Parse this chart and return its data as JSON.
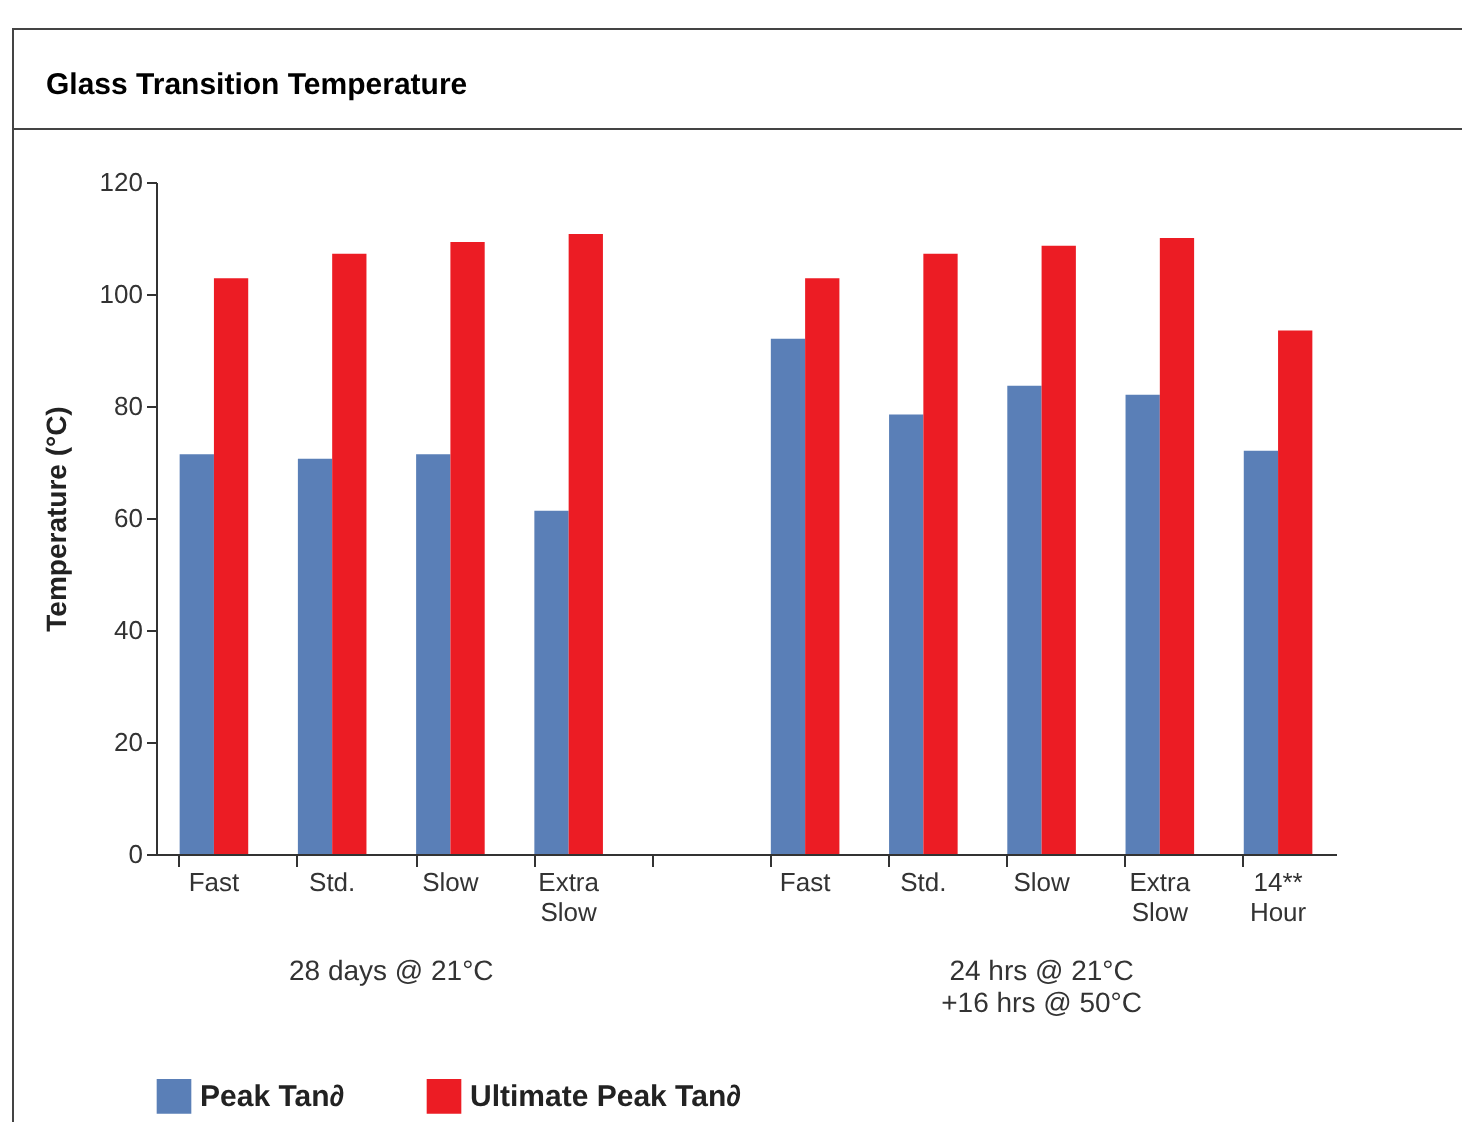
{
  "chart_data": {
    "type": "bar",
    "title": "Glass Transition Temperature",
    "ylabel": "Temperature (°C)",
    "categories": [
      "Fast",
      "Std.",
      "Slow",
      "Extra Slow",
      null,
      "Fast",
      "Std.",
      "Slow",
      "Extra Slow",
      "14** Hour"
    ],
    "series": [
      {
        "name": "Peak Tan∂",
        "color": "#5a7fb7",
        "values": [
          71.4,
          70.6,
          71.4,
          61.3,
          null,
          92,
          78.5,
          83.6,
          82,
          72
        ]
      },
      {
        "name": "Ultimate Peak Tan∂",
        "color": "#ec1c24",
        "values": [
          102.8,
          107.2,
          109.3,
          110.7,
          null,
          102.8,
          107.2,
          108.6,
          110,
          93.5
        ]
      }
    ],
    "ylim": [
      0,
      120
    ],
    "yticks": [
      0,
      20,
      40,
      60,
      80,
      100,
      120
    ],
    "grid": false,
    "legend": "bottom",
    "annotations": [
      "28 days @ 21°C",
      "24 hrs @ 21°C\n+16 hrs @ 50°C"
    ]
  }
}
